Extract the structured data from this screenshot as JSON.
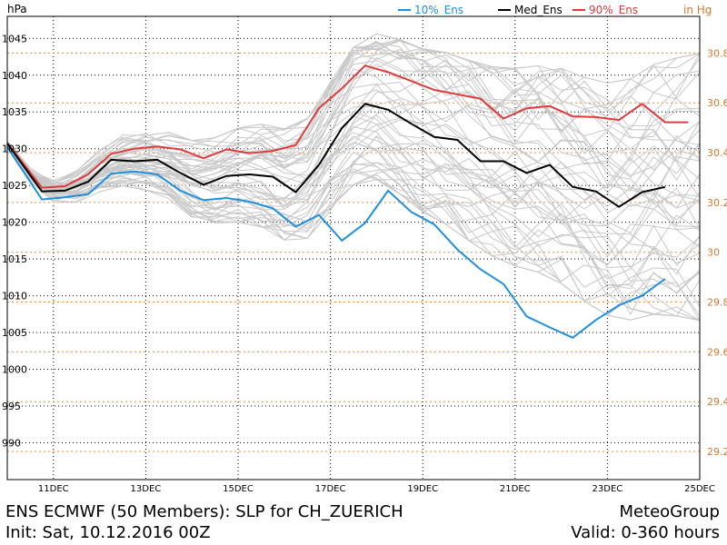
{
  "chart_data": {
    "type": "line",
    "units_left": "hPa",
    "units_right": "in Hg",
    "legend": [
      {
        "label": "10%_Ens",
        "color": "#1e90e0"
      },
      {
        "label": "Med_Ens",
        "color": "#000000"
      },
      {
        "label": "90%_Ens",
        "color": "#e03a3a"
      }
    ],
    "x_ticks": [
      "11DEC",
      "13DEC",
      "15DEC",
      "17DEC",
      "19DEC",
      "21DEC",
      "23DEC",
      "25DEC"
    ],
    "x_tick_hours": [
      24,
      72,
      120,
      168,
      216,
      264,
      312,
      360
    ],
    "xlim": [
      0,
      360
    ],
    "ylim": [
      985,
      1048
    ],
    "y_ticks_left": [
      990,
      995,
      1000,
      1005,
      1010,
      1015,
      1020,
      1025,
      1030,
      1035,
      1040,
      1045
    ],
    "y_ticks_right": [
      29.2,
      29.4,
      29.6,
      29.8,
      30,
      30.2,
      30.4,
      30.6,
      30.8
    ],
    "y_ticks_right_labels": [
      "29.2",
      "29.4",
      "29.6",
      "29.8",
      "30",
      "30.2",
      "30.4",
      "30.6",
      "30.8"
    ],
    "series": [
      {
        "name": "90%_Ens",
        "color": "#e03a3a",
        "x": [
          0,
          18,
          30,
          42,
          54,
          66,
          78,
          90,
          102,
          114,
          126,
          138,
          150,
          162,
          174,
          186,
          198,
          210,
          222,
          234,
          246,
          258,
          270,
          282,
          294,
          306,
          318,
          330,
          342,
          354
        ],
        "values": [
          1030.8,
          1024.7,
          1024.9,
          1026.5,
          1029.3,
          1030.0,
          1030.3,
          1029.9,
          1028.7,
          1029.9,
          1029.4,
          1029.7,
          1030.5,
          1035.5,
          1038.2,
          1041.3,
          1040.4,
          1039.2,
          1038.0,
          1037.4,
          1036.8,
          1034.1,
          1035.5,
          1035.8,
          1034.4,
          1034.3,
          1033.9,
          1036.1,
          1033.6,
          1033.6
        ]
      },
      {
        "name": "Med_Ens",
        "color": "#000000",
        "x": [
          0,
          18,
          30,
          42,
          54,
          66,
          78,
          90,
          102,
          114,
          126,
          138,
          150,
          162,
          174,
          186,
          198,
          210,
          222,
          234,
          246,
          258,
          270,
          282,
          294,
          306,
          318,
          330,
          342
        ],
        "values": [
          1030.7,
          1024.2,
          1024.3,
          1025.5,
          1028.5,
          1028.3,
          1028.5,
          1026.7,
          1025.1,
          1026.3,
          1026.5,
          1026.2,
          1024.1,
          1027.8,
          1032.8,
          1036.1,
          1035.3,
          1033.4,
          1031.6,
          1031.2,
          1028.3,
          1028.3,
          1026.7,
          1027.8,
          1024.8,
          1024.2,
          1022.1,
          1024.1,
          1024.8
        ]
      },
      {
        "name": "10%_Ens",
        "color": "#1e90e0",
        "x": [
          0,
          18,
          30,
          42,
          54,
          66,
          78,
          90,
          102,
          114,
          126,
          138,
          150,
          162,
          174,
          186,
          198,
          210,
          222,
          234,
          246,
          258,
          270,
          282,
          294,
          306,
          318,
          330,
          342
        ],
        "values": [
          1030.2,
          1023.1,
          1023.4,
          1023.8,
          1026.6,
          1026.9,
          1026.5,
          1024.3,
          1023.0,
          1023.3,
          1022.8,
          1021.9,
          1019.4,
          1021.0,
          1017.5,
          1019.9,
          1024.3,
          1021.4,
          1019.7,
          1016.3,
          1013.6,
          1011.6,
          1007.2,
          1005.7,
          1004.3,
          1006.7,
          1008.7,
          1010.0,
          1012.3
        ]
      }
    ]
  },
  "footer": {
    "title": "ENS ECMWF (50 Members): SLP for CH_ZUERICH",
    "brand": "MeteoGroup",
    "init": "Init: Sat, 10.12.2016 00Z",
    "valid": "Valid: 0-360 hours"
  },
  "colors": {
    "grid": "#000000",
    "right_grid": "#e08a3c",
    "right_label": "#d07a30",
    "members": "#c8c8c8"
  }
}
